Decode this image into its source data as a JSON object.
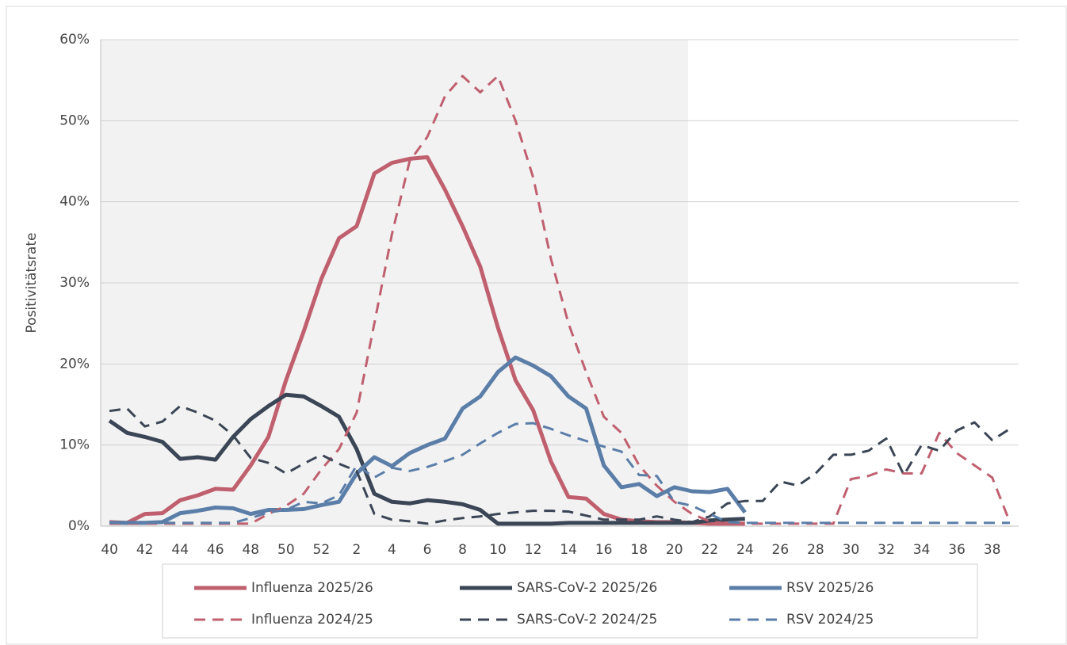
{
  "chart_data": {
    "type": "line",
    "y_label": "Positivitätsrate",
    "categories": [
      40,
      null,
      42,
      null,
      44,
      null,
      46,
      null,
      48,
      null,
      50,
      null,
      52,
      null,
      2,
      null,
      4,
      null,
      6,
      null,
      8,
      null,
      10,
      null,
      12,
      null,
      14,
      null,
      16,
      null,
      18,
      null,
      20,
      null,
      22,
      null,
      24,
      null,
      26,
      null,
      28,
      null,
      30,
      null,
      32,
      null,
      34,
      null,
      36,
      null,
      38,
      null
    ],
    "ylim": [
      0,
      60
    ],
    "yticks": [
      {
        "value": 0,
        "label": "0%"
      },
      {
        "value": 10,
        "label": "10%"
      },
      {
        "value": 20,
        "label": "20%"
      },
      {
        "value": 30,
        "label": "30%"
      },
      {
        "value": 40,
        "label": "40%"
      },
      {
        "value": 50,
        "label": "50%"
      },
      {
        "value": 60,
        "label": "60%"
      }
    ],
    "grid": true,
    "series": [
      {
        "name": "Influenza 2025/26",
        "color": "#c0606f",
        "dashed": false,
        "values": [
          0.5,
          0.4,
          1.5,
          1.6,
          3.2,
          3.8,
          4.6,
          4.5,
          7.5,
          11,
          18,
          24,
          30.5,
          35.5,
          37,
          43.5,
          44.8,
          45.3,
          45.5,
          41.5,
          37,
          32,
          24.5,
          18,
          14.3,
          8,
          3.6,
          3.4,
          1.5,
          0.8,
          0.6,
          0.5,
          0.5,
          0.4,
          0.3,
          0.3,
          0.3,
          null,
          null,
          null,
          null,
          null,
          null,
          null,
          null,
          null,
          null,
          null,
          null,
          null,
          null,
          null
        ]
      },
      {
        "name": "SARS-CoV-2 2025/26",
        "color": "#3a4555",
        "dashed": false,
        "values": [
          13,
          11.5,
          11,
          10.4,
          8.3,
          8.5,
          8.2,
          11,
          13.2,
          14.8,
          16.2,
          16,
          14.8,
          13.5,
          9.5,
          4,
          3,
          2.8,
          3.2,
          3,
          2.7,
          2,
          0.3,
          0.3,
          0.3,
          0.3,
          0.4,
          0.4,
          0.4,
          0.4,
          0.4,
          0.4,
          0.4,
          0.4,
          0.7,
          0.8,
          0.9,
          null,
          null,
          null,
          null,
          null,
          null,
          null,
          null,
          null,
          null,
          null,
          null,
          null,
          null,
          null
        ]
      },
      {
        "name": "RSV 2025/26",
        "color": "#5b7ea8",
        "dashed": false,
        "values": [
          0.4,
          0.4,
          0.4,
          0.5,
          1.6,
          1.9,
          2.3,
          2.2,
          1.5,
          2,
          2,
          2.1,
          2.6,
          3,
          6.5,
          8.5,
          7.4,
          9,
          10,
          10.8,
          14.5,
          16,
          19,
          20.8,
          19.8,
          18.5,
          16,
          14.5,
          7.5,
          4.8,
          5.2,
          3.7,
          4.8,
          4.3,
          4.2,
          4.6,
          1.7,
          null,
          null,
          null,
          null,
          null,
          null,
          null,
          null,
          null,
          null,
          null,
          null,
          null,
          null,
          null
        ]
      },
      {
        "name": "Influenza 2024/25",
        "color": "#c0606f",
        "dashed": true,
        "values": [
          0.3,
          0.3,
          0.3,
          0.3,
          0.3,
          0.3,
          0.3,
          0.3,
          0.3,
          1.5,
          2.5,
          4,
          7,
          9.5,
          14,
          25,
          36,
          45,
          48,
          53,
          55.5,
          53.5,
          55.5,
          50,
          43,
          33,
          25,
          19,
          13.5,
          11.5,
          7.5,
          5,
          3,
          1.5,
          0.6,
          0.3,
          0.3,
          0.3,
          0.3,
          0.3,
          0.3,
          0.3,
          5.8,
          6.2,
          7,
          6.5,
          6.5,
          11.5,
          9,
          7.5,
          6,
          0.5
        ]
      },
      {
        "name": "SARS-CoV-2 2024/25",
        "color": "#3a4555",
        "dashed": true,
        "values": [
          14.2,
          14.5,
          12.3,
          12.9,
          14.8,
          14,
          13,
          11.2,
          8.4,
          7.8,
          6.5,
          7.7,
          8.8,
          7.7,
          6.8,
          1.5,
          0.8,
          0.6,
          0.3,
          0.7,
          1,
          1.2,
          1.5,
          1.7,
          1.9,
          1.9,
          1.8,
          1.3,
          0.8,
          0.8,
          0.8,
          1.2,
          0.8,
          0.5,
          1.2,
          2.8,
          3.1,
          3.1,
          5.5,
          5,
          6.5,
          8.8,
          8.8,
          9.3,
          10.8,
          6.3,
          10,
          9.3,
          11.8,
          12.8,
          10.6,
          12
        ]
      },
      {
        "name": "RSV 2024/25",
        "color": "#5b7ea8",
        "dashed": true,
        "values": [
          0.4,
          0.4,
          0.4,
          0.4,
          0.4,
          0.4,
          0.4,
          0.4,
          1,
          1.7,
          2,
          3,
          2.8,
          3.8,
          7.5,
          6,
          7.2,
          6.8,
          7.3,
          8,
          8.8,
          10.2,
          11.5,
          12.6,
          12.7,
          12,
          11.2,
          10.5,
          9.8,
          9.2,
          6.3,
          6.2,
          3,
          2.5,
          1.5,
          0.5,
          0.4,
          0.4,
          0.4,
          0.4,
          0.4,
          0.4,
          0.4,
          0.4,
          0.4,
          0.4,
          0.4,
          0.4,
          0.4,
          0.4,
          0.4,
          0.4
        ]
      }
    ]
  }
}
